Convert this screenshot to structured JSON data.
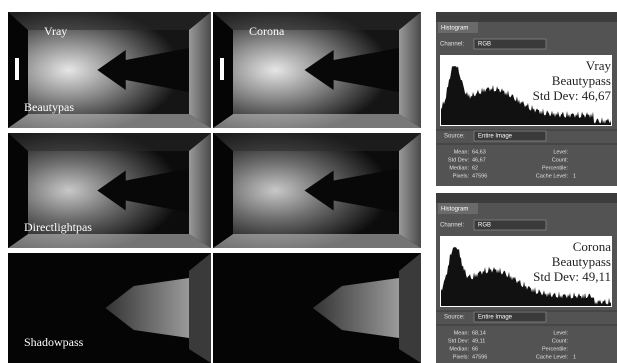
{
  "renders": {
    "columns": [
      "Vray",
      "Corona"
    ],
    "rows": [
      "Beautypas",
      "Directlightpas",
      "Shadowpass"
    ]
  },
  "histograms": [
    {
      "title": "Histogram",
      "channel_label": "Channel:",
      "channel": "RGB",
      "overlay": [
        "Vray",
        "Beautypass",
        "Std Dev: 46,67"
      ],
      "source_label": "Source:",
      "source": "Entire Image",
      "stats_left": [
        [
          "Mean:",
          "64,63"
        ],
        [
          "Std Dev:",
          "46,67"
        ],
        [
          "Median:",
          "62"
        ],
        [
          "Pixels:",
          "47596"
        ]
      ],
      "stats_right": [
        "Level:",
        "Count:",
        "Percentile:",
        "Cache Level:"
      ],
      "cache_level": "1"
    },
    {
      "title": "Histogram",
      "channel_label": "Channel:",
      "channel": "RGB",
      "overlay": [
        "Corona",
        "Beautypass",
        "Std Dev: 49,11"
      ],
      "source_label": "Source:",
      "source": "Entire Image",
      "stats_left": [
        [
          "Mean:",
          "68,14"
        ],
        [
          "Std Dev:",
          "49,11"
        ],
        [
          "Median:",
          "66"
        ],
        [
          "Pixels:",
          "47596"
        ]
      ],
      "stats_right": [
        "Level:",
        "Count:",
        "Percentile:",
        "Cache Level:"
      ],
      "cache_level": "1"
    }
  ]
}
